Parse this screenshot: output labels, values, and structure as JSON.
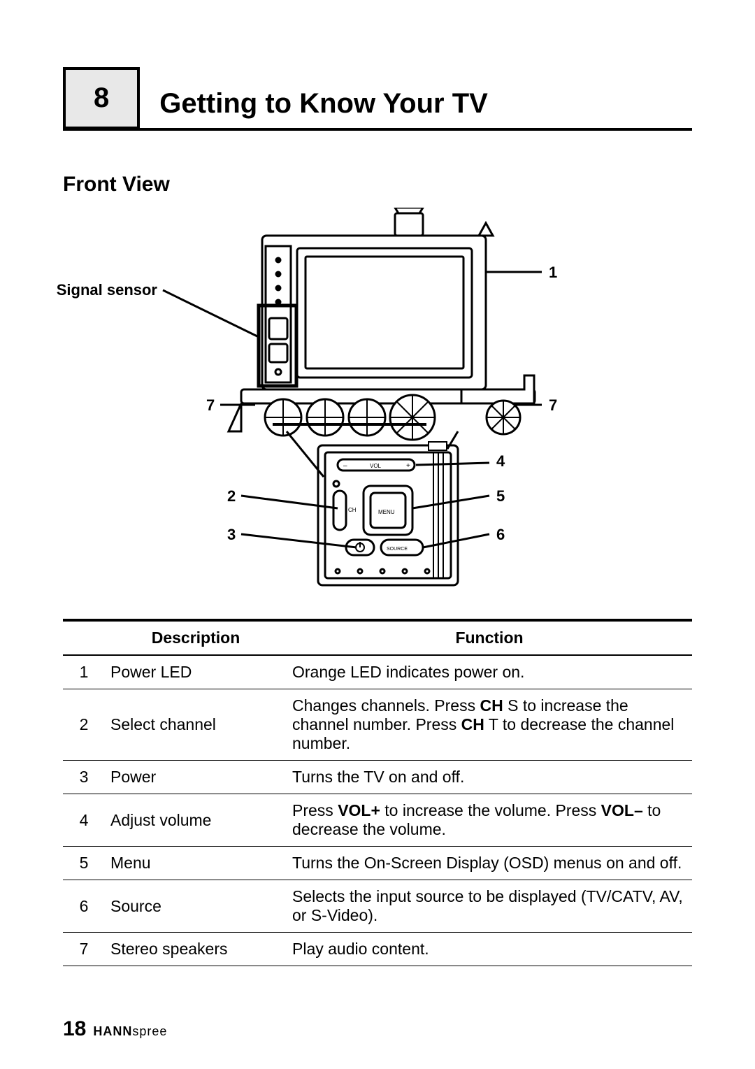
{
  "chapter": {
    "number": "8",
    "title": "Getting to Know Your TV"
  },
  "section": {
    "title": "Front View"
  },
  "diagram": {
    "signal_sensor_label": "Signal sensor",
    "callouts": {
      "c1": "1",
      "c2": "2",
      "c3": "3",
      "c4": "4",
      "c5": "5",
      "c6": "6",
      "c7l": "7",
      "c7r": "7"
    },
    "control_labels": {
      "vol_minus": "–",
      "vol": "VOL",
      "vol_plus": "+",
      "ch": "CH",
      "menu": "MENU",
      "source": "SOURCE"
    },
    "stroke": "#000000",
    "fill_bg": "#ffffff",
    "label_fontsize": 22,
    "label_fontweight": 700
  },
  "table": {
    "headers": {
      "description": "Description",
      "function": "Function"
    },
    "rows": [
      {
        "n": "1",
        "desc": "Power LED",
        "func_html": "Orange LED indicates power on."
      },
      {
        "n": "2",
        "desc": "Select channel",
        "func_html": "Changes channels. Press <b>CH</b> S to increase the channel number. Press <b>CH</b> T to decrease the channel number."
      },
      {
        "n": "3",
        "desc": "Power",
        "func_html": "Turns the TV on and off."
      },
      {
        "n": "4",
        "desc": "Adjust volume",
        "func_html": "Press <b>VOL+</b> to increase the volume. Press <b>VOL–</b> to decrease the volume."
      },
      {
        "n": "5",
        "desc": "Menu",
        "func_html": "Turns the On-Screen Display (OSD) menus on and off."
      },
      {
        "n": "6",
        "desc": "Source",
        "func_html": "Selects the input source to be displayed (TV/CATV, AV, or S-Video)."
      },
      {
        "n": "7",
        "desc": "Stereo speakers",
        "func_html": "Play audio content."
      }
    ]
  },
  "footer": {
    "page_number": "18",
    "brand_bold": "HANN",
    "brand_rest": "spree"
  }
}
